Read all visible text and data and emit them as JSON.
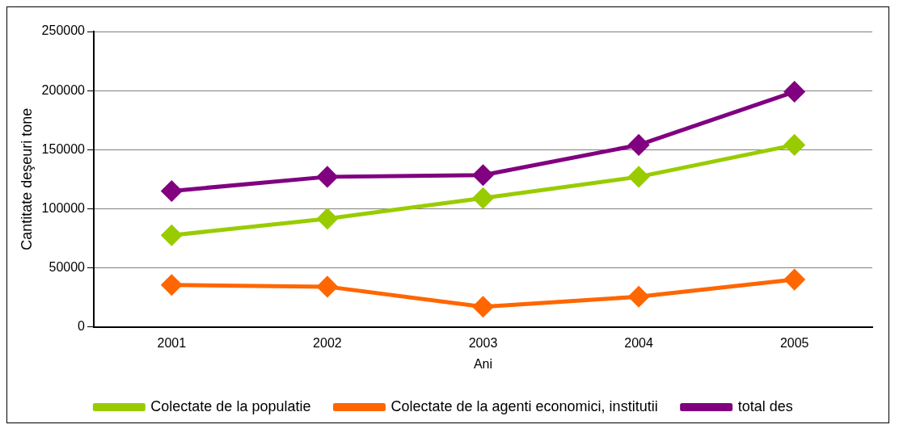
{
  "chart_data": {
    "type": "line",
    "xlabel": "Ani",
    "ylabel": "Cantitate deşeuri tone",
    "categories": [
      "2001",
      "2002",
      "2003",
      "2004",
      "2005"
    ],
    "series": [
      {
        "name": "Colectate de la populatie",
        "color": "#99cc00",
        "values": [
          77500,
          91500,
          109000,
          127000,
          154000
        ]
      },
      {
        "name": "Colectate de la agenti economici, institutii",
        "color": "#ff6600",
        "values": [
          35500,
          34000,
          17000,
          25500,
          40000
        ]
      },
      {
        "name": "total des",
        "color": "#800080",
        "values": [
          115000,
          127000,
          128500,
          154000,
          199000
        ]
      }
    ],
    "ylim": [
      0,
      250000
    ],
    "yticks": [
      0,
      50000,
      100000,
      150000,
      200000,
      250000
    ],
    "grid": "y",
    "legend": "bottom",
    "marker": "diamond",
    "line_style": "solid"
  }
}
